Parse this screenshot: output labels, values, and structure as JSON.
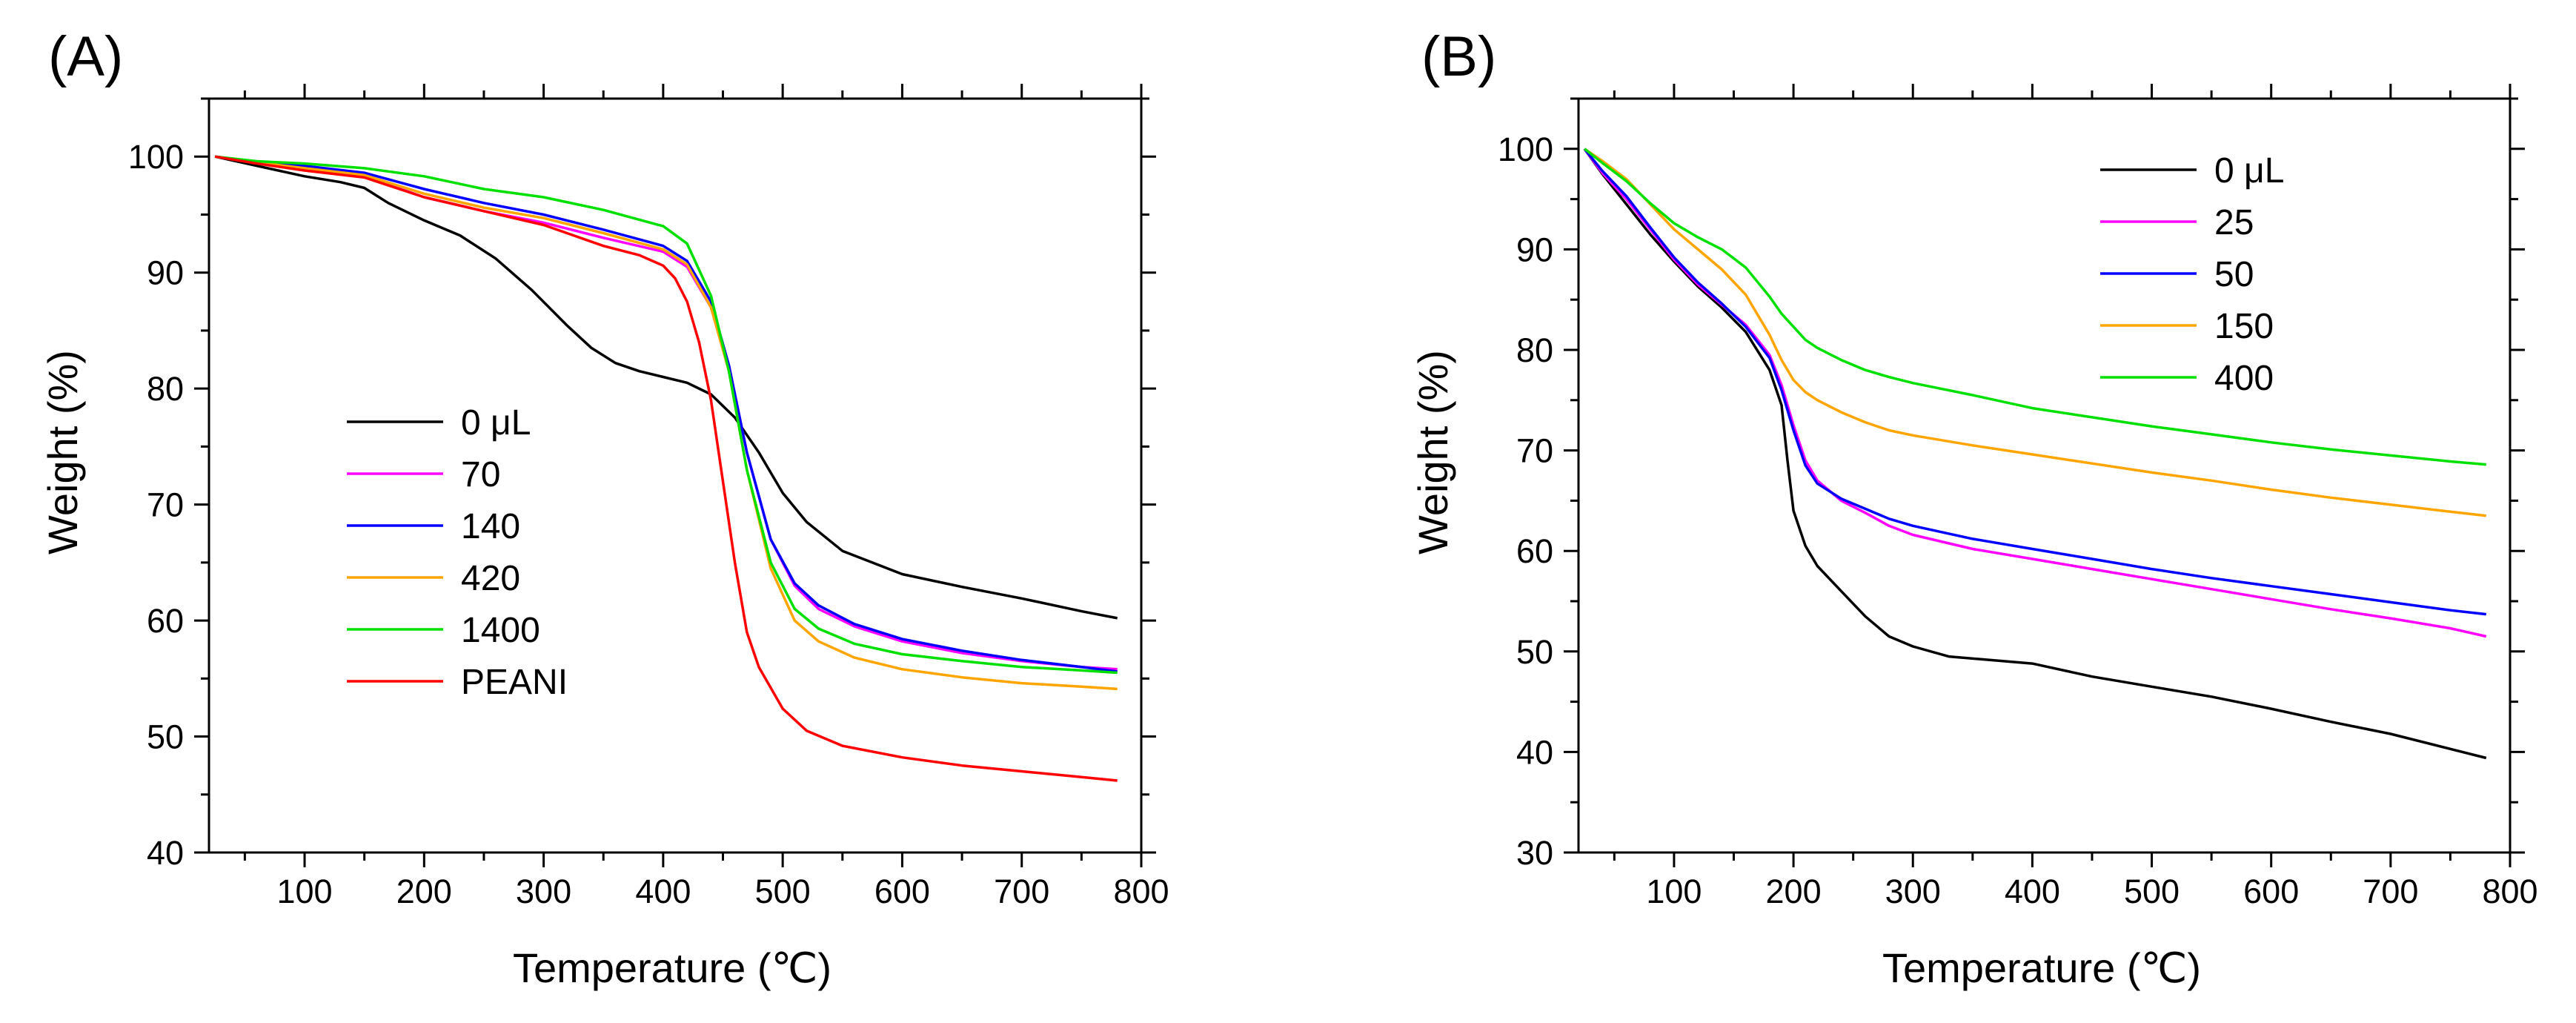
{
  "chart_data": [
    {
      "panel_label": "(A)",
      "type": "line",
      "xlabel": "Temperature (℃)",
      "ylabel": "Weight (%)",
      "xlim": [
        20,
        800
      ],
      "ylim": [
        40,
        105
      ],
      "xticks": [
        100,
        200,
        300,
        400,
        500,
        600,
        700,
        800
      ],
      "yticks": [
        40,
        50,
        60,
        70,
        80,
        90,
        100
      ],
      "legend_position": "center-left",
      "series": [
        {
          "name": "0 μL",
          "color": "#000000",
          "x": [
            25,
            60,
            100,
            130,
            150,
            170,
            200,
            230,
            260,
            290,
            320,
            340,
            360,
            380,
            400,
            420,
            440,
            460,
            480,
            500,
            520,
            550,
            600,
            650,
            700,
            750,
            780
          ],
          "y": [
            100,
            99.2,
            98.3,
            97.8,
            97.3,
            96,
            94.5,
            93.2,
            91.2,
            88.5,
            85.4,
            83.5,
            82.2,
            81.5,
            81,
            80.5,
            79.5,
            77.5,
            74.5,
            71,
            68.5,
            66,
            64,
            62.9,
            61.9,
            60.8,
            60.2
          ]
        },
        {
          "name": "70",
          "color": "#ff00ff",
          "x": [
            25,
            60,
            100,
            150,
            200,
            250,
            300,
            350,
            400,
            420,
            440,
            455,
            470,
            490,
            510,
            530,
            560,
            600,
            650,
            700,
            750,
            780
          ],
          "y": [
            100,
            99.5,
            99,
            98.3,
            96.5,
            95.3,
            94.3,
            93,
            91.8,
            90.5,
            87,
            82,
            74.5,
            67,
            63,
            61,
            59.5,
            58.2,
            57.2,
            56.5,
            56,
            55.8
          ]
        },
        {
          "name": "140",
          "color": "#0000ff",
          "x": [
            25,
            60,
            100,
            150,
            200,
            250,
            300,
            350,
            400,
            420,
            440,
            455,
            470,
            490,
            510,
            530,
            560,
            600,
            650,
            700,
            750,
            780
          ],
          "y": [
            100,
            99.5,
            99.2,
            98.6,
            97.2,
            96,
            95,
            93.7,
            92.3,
            91,
            87.5,
            82,
            74.5,
            67,
            63.2,
            61.3,
            59.7,
            58.4,
            57.4,
            56.6,
            56,
            55.6
          ]
        },
        {
          "name": "420",
          "color": "#ffa500",
          "x": [
            25,
            60,
            100,
            150,
            200,
            250,
            300,
            350,
            400,
            420,
            440,
            455,
            470,
            490,
            510,
            530,
            560,
            600,
            650,
            700,
            750,
            780
          ],
          "y": [
            100,
            99.5,
            99,
            98.4,
            96.8,
            95.6,
            94.7,
            93.4,
            92,
            90.7,
            87,
            81.5,
            73,
            64.5,
            60,
            58.2,
            56.8,
            55.8,
            55.1,
            54.6,
            54.3,
            54.1
          ]
        },
        {
          "name": "1400",
          "color": "#00e000",
          "x": [
            25,
            60,
            100,
            150,
            200,
            250,
            300,
            350,
            400,
            420,
            440,
            455,
            470,
            490,
            510,
            530,
            560,
            600,
            650,
            700,
            750,
            780
          ],
          "y": [
            100,
            99.6,
            99.4,
            99,
            98.3,
            97.2,
            96.5,
            95.4,
            94,
            92.5,
            88,
            81.5,
            73,
            65,
            61,
            59.3,
            58,
            57.1,
            56.5,
            56,
            55.7,
            55.5
          ]
        },
        {
          "name": "PEANI",
          "color": "#ff0000",
          "x": [
            25,
            60,
            100,
            150,
            200,
            250,
            300,
            350,
            380,
            400,
            410,
            420,
            430,
            440,
            450,
            460,
            470,
            480,
            500,
            520,
            550,
            600,
            650,
            700,
            750,
            780
          ],
          "y": [
            100,
            99.4,
            98.8,
            98.2,
            96.5,
            95.3,
            94.1,
            92.3,
            91.5,
            90.6,
            89.5,
            87.5,
            84,
            79,
            72,
            65,
            59,
            56,
            52.4,
            50.5,
            49.2,
            48.2,
            47.5,
            47,
            46.5,
            46.2
          ]
        }
      ]
    },
    {
      "panel_label": "(B)",
      "type": "line",
      "xlabel": "Temperature (℃)",
      "ylabel": "Weight (%)",
      "xlim": [
        20,
        800
      ],
      "ylim": [
        30,
        105
      ],
      "xticks": [
        100,
        200,
        300,
        400,
        500,
        600,
        700,
        800
      ],
      "yticks": [
        30,
        40,
        50,
        60,
        70,
        80,
        90,
        100
      ],
      "legend_position": "top-center",
      "series": [
        {
          "name": "0 μL",
          "color": "#000000",
          "x": [
            25,
            40,
            60,
            80,
            100,
            120,
            140,
            160,
            180,
            190,
            195,
            200,
            210,
            220,
            240,
            260,
            280,
            300,
            330,
            400,
            450,
            500,
            550,
            600,
            650,
            700,
            750,
            780
          ],
          "y": [
            100,
            97.5,
            94.5,
            91.5,
            88.8,
            86.3,
            84.2,
            81.8,
            78,
            74.5,
            69,
            64,
            60.5,
            58.5,
            56,
            53.5,
            51.5,
            50.5,
            49.5,
            48.8,
            47.5,
            46.5,
            45.5,
            44.3,
            43,
            41.8,
            40.3,
            39.4
          ]
        },
        {
          "name": "25",
          "color": "#ff00ff",
          "x": [
            25,
            40,
            60,
            80,
            100,
            120,
            140,
            160,
            180,
            190,
            200,
            210,
            220,
            240,
            260,
            280,
            300,
            350,
            400,
            450,
            500,
            550,
            600,
            650,
            700,
            750,
            780
          ],
          "y": [
            100,
            97.6,
            95,
            92,
            89,
            86.5,
            84.5,
            82.5,
            79.5,
            76.5,
            72.5,
            69,
            67,
            65,
            63.8,
            62.5,
            61.6,
            60.2,
            59.2,
            58.2,
            57.2,
            56.2,
            55.2,
            54.2,
            53.3,
            52.3,
            51.5
          ]
        },
        {
          "name": "50",
          "color": "#0000ff",
          "x": [
            25,
            40,
            60,
            80,
            100,
            120,
            140,
            160,
            180,
            190,
            200,
            210,
            220,
            240,
            260,
            280,
            300,
            350,
            400,
            450,
            500,
            550,
            600,
            650,
            700,
            750,
            780
          ],
          "y": [
            100,
            97.8,
            95.3,
            92.2,
            89.2,
            86.7,
            84.6,
            82.3,
            79.2,
            76,
            72,
            68.5,
            66.7,
            65.2,
            64.2,
            63.2,
            62.5,
            61.2,
            60.2,
            59.2,
            58.2,
            57.3,
            56.5,
            55.7,
            54.9,
            54.1,
            53.7
          ]
        },
        {
          "name": "150",
          "color": "#ffa500",
          "x": [
            25,
            40,
            60,
            80,
            100,
            120,
            140,
            160,
            180,
            190,
            200,
            210,
            220,
            240,
            260,
            280,
            300,
            350,
            400,
            450,
            500,
            550,
            600,
            650,
            700,
            750,
            780
          ],
          "y": [
            100,
            98.8,
            97,
            94.5,
            92,
            90,
            88,
            85.5,
            81.5,
            79,
            77,
            75.8,
            75,
            73.8,
            72.8,
            72,
            71.5,
            70.5,
            69.6,
            68.7,
            67.8,
            67,
            66.1,
            65.3,
            64.6,
            63.9,
            63.5
          ]
        },
        {
          "name": "400",
          "color": "#00e000",
          "x": [
            25,
            40,
            60,
            80,
            100,
            120,
            140,
            160,
            180,
            190,
            200,
            210,
            220,
            240,
            260,
            280,
            300,
            350,
            400,
            450,
            500,
            550,
            600,
            650,
            700,
            750,
            780
          ],
          "y": [
            100,
            98.6,
            96.8,
            94.6,
            92.6,
            91.2,
            90,
            88.2,
            85.3,
            83.6,
            82.3,
            81,
            80.2,
            79,
            78,
            77.3,
            76.7,
            75.5,
            74.2,
            73.3,
            72.4,
            71.6,
            70.8,
            70.1,
            69.5,
            68.9,
            68.6
          ]
        }
      ]
    }
  ]
}
